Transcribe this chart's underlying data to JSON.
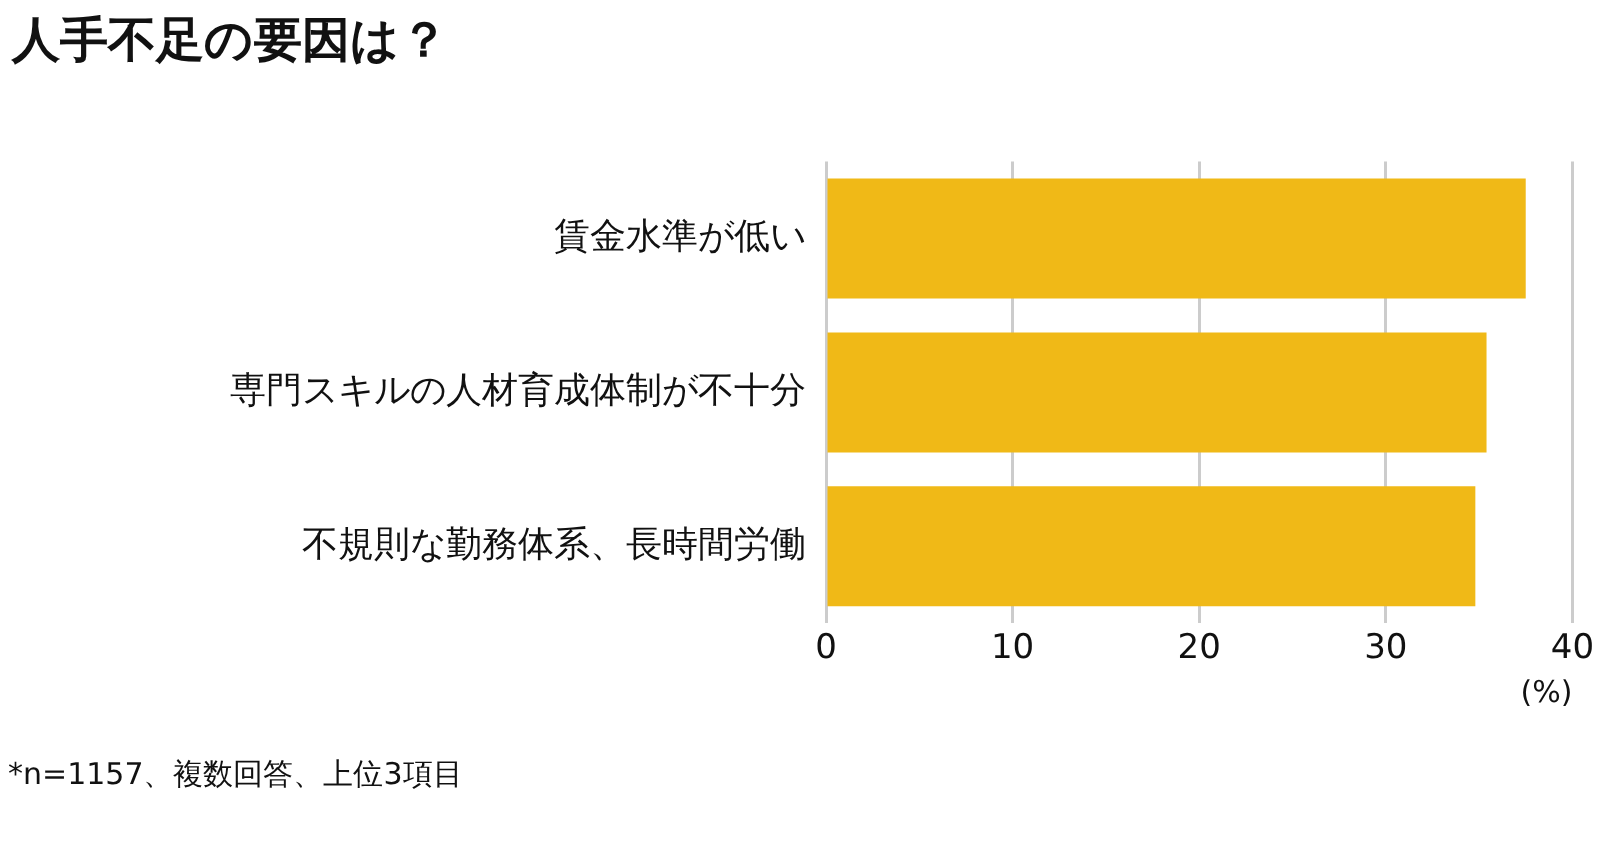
{
  "chart_data": {
    "type": "bar",
    "orientation": "horizontal",
    "title": "人手不足の要因は？",
    "categories": [
      "賃金水準が低い",
      "専門スキルの人材育成体制が不十分",
      "不規則な勤務体系、長時間労働"
    ],
    "values": [
      37.5,
      35.4,
      34.8
    ],
    "color": "#f0b917",
    "xlim": [
      0,
      40
    ],
    "xticks": [
      0,
      10,
      20,
      30,
      40
    ],
    "xlabel": "(%)",
    "grid": "x",
    "legend": false,
    "annotations": [
      "*n=1157、複数回答、上位3項目"
    ]
  }
}
